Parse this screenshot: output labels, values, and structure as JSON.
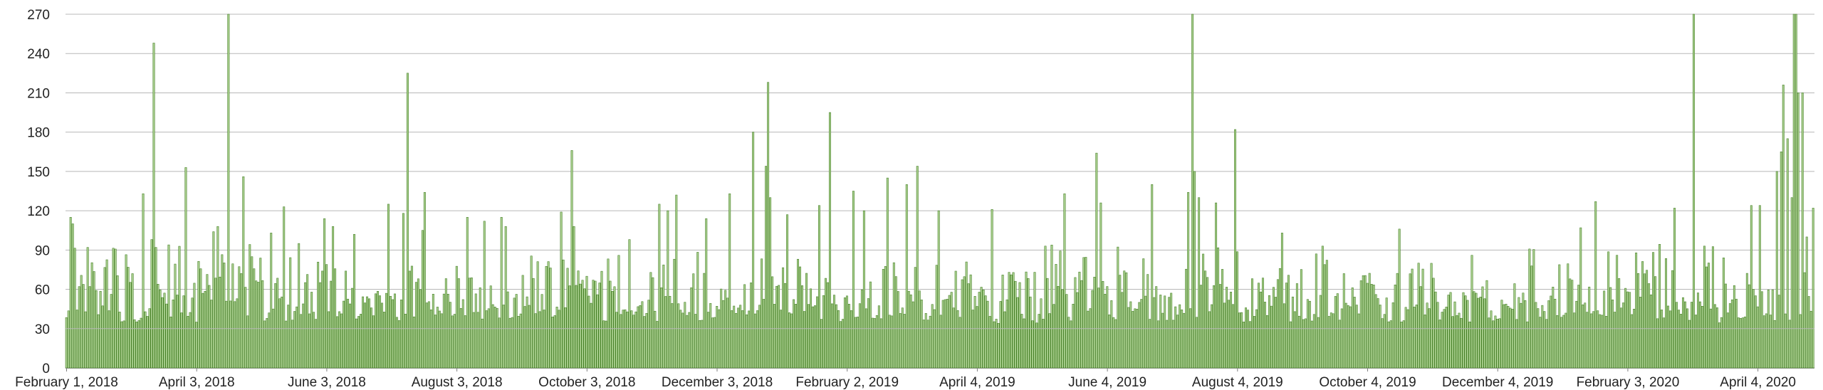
{
  "chart_data": {
    "type": "bar",
    "title": "",
    "xlabel": "",
    "ylabel": "",
    "ylim": [
      0,
      270
    ],
    "yticks": [
      0,
      30,
      60,
      90,
      120,
      150,
      180,
      210,
      240,
      270
    ],
    "grid": true,
    "legend": "none",
    "colors": {
      "bar_fill": "#a9cf8e",
      "bar_stroke": "#3e7a1e",
      "grid": "#b8b8b8",
      "baseline": "#7f7f7f",
      "text": "#222222"
    },
    "x_start": "2018-02-01",
    "x_end": "2020-04-30",
    "xtick_dates": [
      "2018-02-01",
      "2018-04-03",
      "2018-06-03",
      "2018-08-03",
      "2018-10-03",
      "2018-12-03",
      "2019-02-02",
      "2019-04-04",
      "2019-06-04",
      "2019-08-04",
      "2019-10-04",
      "2019-12-04",
      "2020-02-03",
      "2020-04-04"
    ],
    "xtick_labels": [
      "February 1, 2018",
      "April 3, 2018",
      "June 3, 2018",
      "August 3, 2018",
      "October 3, 2018",
      "December 3, 2018",
      "February 2, 2019",
      "April 4, 2019",
      "June 4, 2019",
      "August 4, 2019",
      "October 4, 2019",
      "December 4, 2019",
      "February 3, 2020",
      "April 4, 2020"
    ],
    "baseline_level": 30,
    "spikes": [
      {
        "date": "2018-02-03",
        "value": 115
      },
      {
        "date": "2018-02-04",
        "value": 110
      },
      {
        "date": "2018-02-11",
        "value": 92
      },
      {
        "date": "2018-03-09",
        "value": 133
      },
      {
        "date": "2018-03-13",
        "value": 98
      },
      {
        "date": "2018-03-14",
        "value": 248
      },
      {
        "date": "2018-03-15",
        "value": 92
      },
      {
        "date": "2018-03-29",
        "value": 153
      },
      {
        "date": "2018-04-11",
        "value": 104
      },
      {
        "date": "2018-04-13",
        "value": 108
      },
      {
        "date": "2018-04-18",
        "value": 270
      },
      {
        "date": "2018-04-25",
        "value": 146
      },
      {
        "date": "2018-05-08",
        "value": 103
      },
      {
        "date": "2018-05-14",
        "value": 123
      },
      {
        "date": "2018-06-02",
        "value": 114
      },
      {
        "date": "2018-06-06",
        "value": 108
      },
      {
        "date": "2018-06-16",
        "value": 102
      },
      {
        "date": "2018-07-02",
        "value": 125
      },
      {
        "date": "2018-07-09",
        "value": 118
      },
      {
        "date": "2018-07-11",
        "value": 225
      },
      {
        "date": "2018-07-18",
        "value": 105
      },
      {
        "date": "2018-07-19",
        "value": 134
      },
      {
        "date": "2018-08-08",
        "value": 115
      },
      {
        "date": "2018-08-16",
        "value": 112
      },
      {
        "date": "2018-08-24",
        "value": 115
      },
      {
        "date": "2018-08-26",
        "value": 108
      },
      {
        "date": "2018-09-21",
        "value": 119
      },
      {
        "date": "2018-09-26",
        "value": 166
      },
      {
        "date": "2018-09-27",
        "value": 108
      },
      {
        "date": "2018-10-23",
        "value": 98
      },
      {
        "date": "2018-11-06",
        "value": 125
      },
      {
        "date": "2018-11-10",
        "value": 120
      },
      {
        "date": "2018-11-14",
        "value": 132
      },
      {
        "date": "2018-11-28",
        "value": 114
      },
      {
        "date": "2018-12-09",
        "value": 133
      },
      {
        "date": "2018-12-20",
        "value": 180
      },
      {
        "date": "2018-12-26",
        "value": 154
      },
      {
        "date": "2018-12-27",
        "value": 218
      },
      {
        "date": "2018-12-28",
        "value": 130
      },
      {
        "date": "2019-01-05",
        "value": 117
      },
      {
        "date": "2019-01-20",
        "value": 124
      },
      {
        "date": "2019-01-25",
        "value": 195
      },
      {
        "date": "2019-02-05",
        "value": 135
      },
      {
        "date": "2019-02-10",
        "value": 120
      },
      {
        "date": "2019-02-21",
        "value": 145
      },
      {
        "date": "2019-03-02",
        "value": 140
      },
      {
        "date": "2019-03-07",
        "value": 154
      },
      {
        "date": "2019-03-17",
        "value": 120
      },
      {
        "date": "2019-04-11",
        "value": 121
      },
      {
        "date": "2019-05-06",
        "value": 93
      },
      {
        "date": "2019-05-15",
        "value": 133
      },
      {
        "date": "2019-05-30",
        "value": 164
      },
      {
        "date": "2019-06-01",
        "value": 126
      },
      {
        "date": "2019-06-25",
        "value": 140
      },
      {
        "date": "2019-07-12",
        "value": 134
      },
      {
        "date": "2019-07-14",
        "value": 270
      },
      {
        "date": "2019-07-15",
        "value": 150
      },
      {
        "date": "2019-07-17",
        "value": 130
      },
      {
        "date": "2019-07-25",
        "value": 126
      },
      {
        "date": "2019-08-03",
        "value": 182
      },
      {
        "date": "2019-08-25",
        "value": 103
      },
      {
        "date": "2019-09-13",
        "value": 93
      },
      {
        "date": "2019-10-19",
        "value": 106
      },
      {
        "date": "2020-01-12",
        "value": 107
      },
      {
        "date": "2020-01-19",
        "value": 127
      },
      {
        "date": "2020-01-29",
        "value": 86
      },
      {
        "date": "2020-02-25",
        "value": 122
      },
      {
        "date": "2020-03-05",
        "value": 270
      },
      {
        "date": "2020-03-10",
        "value": 93
      },
      {
        "date": "2020-04-01",
        "value": 124
      },
      {
        "date": "2020-04-05",
        "value": 124
      },
      {
        "date": "2020-04-13",
        "value": 150
      },
      {
        "date": "2020-04-15",
        "value": 165
      },
      {
        "date": "2020-04-16",
        "value": 216
      },
      {
        "date": "2020-04-18",
        "value": 175
      },
      {
        "date": "2020-04-20",
        "value": 130
      },
      {
        "date": "2020-04-21",
        "value": 270
      },
      {
        "date": "2020-04-22",
        "value": 270
      },
      {
        "date": "2020-04-23",
        "value": 210
      },
      {
        "date": "2020-04-25",
        "value": 210
      },
      {
        "date": "2020-04-27",
        "value": 100
      },
      {
        "date": "2020-04-30",
        "value": 122
      }
    ]
  }
}
